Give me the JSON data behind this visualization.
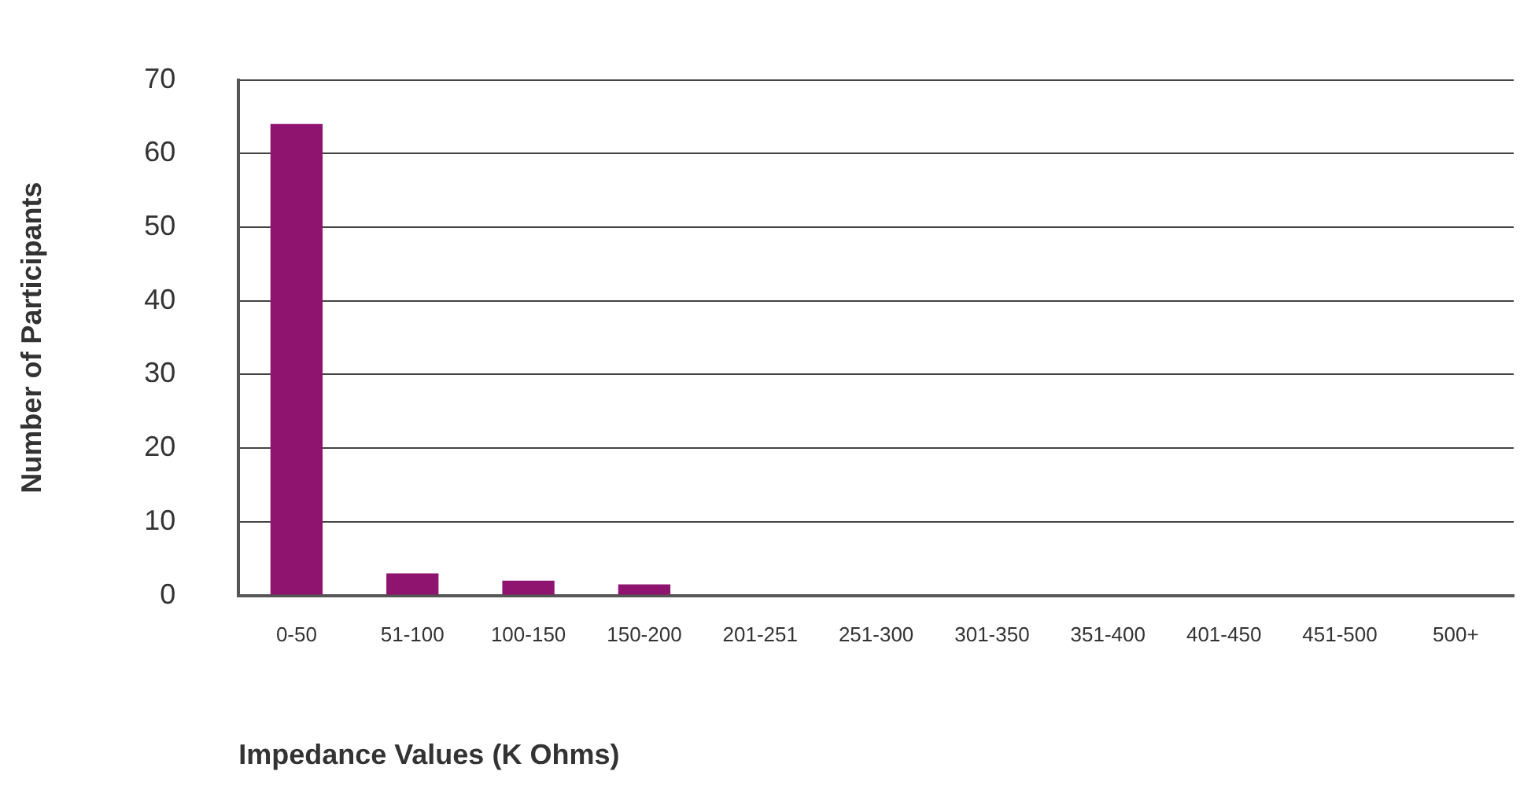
{
  "chart_data": {
    "type": "bar",
    "categories": [
      "0-50",
      "51-100",
      "100-150",
      "150-200",
      "201-251",
      "251-300",
      "301-350",
      "351-400",
      "401-450",
      "451-500",
      "500+"
    ],
    "values": [
      64,
      3,
      2,
      1.5,
      0,
      0,
      0,
      0,
      0,
      0,
      0
    ],
    "color": "#8e1470",
    "xlabel": "Impedance Values (K Ohms)",
    "ylabel": "Number of Participants",
    "ylim": [
      0,
      70
    ],
    "yticks": [
      0,
      10,
      20,
      30,
      40,
      50,
      60,
      70
    ],
    "grid": "y",
    "legend": false
  }
}
